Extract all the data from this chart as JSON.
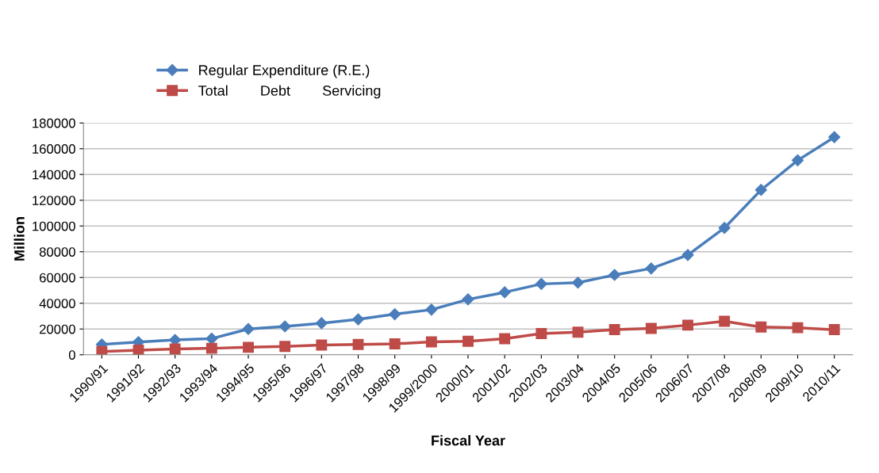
{
  "chart_data": {
    "type": "line",
    "xlabel": "Fiscal Year",
    "ylabel": "Million",
    "categories": [
      "1990/91",
      "1991/92",
      "1992/93",
      "1993/94",
      "1994/95",
      "1995/96",
      "1996/97",
      "1997/98",
      "1998/99",
      "1999/2000",
      "2000/01",
      "2001/02",
      "2002/03",
      "2003/04",
      "2004/05",
      "2005/06",
      "2006/07",
      "2007/08",
      "2008/09",
      "2009/10",
      "2010/11"
    ],
    "series": [
      {
        "name": "Regular Expenditure (R.E.)",
        "color": "#4a7ebb",
        "marker": "diamond",
        "values": [
          8000,
          9800,
          11500,
          12500,
          20000,
          22000,
          24500,
          27500,
          31500,
          35000,
          43000,
          48500,
          55000,
          56000,
          62000,
          67000,
          77500,
          98500,
          128000,
          151000,
          169000
        ]
      },
      {
        "name": "Total        Debt        Servicing",
        "color": "#be4b48",
        "marker": "square",
        "values": [
          2500,
          3500,
          4500,
          5000,
          5800,
          6500,
          7500,
          8000,
          8500,
          10000,
          10500,
          12500,
          16500,
          17500,
          19500,
          20500,
          23000,
          26000,
          21500,
          21000,
          19500
        ]
      }
    ],
    "ylim": [
      0,
      180000
    ],
    "yticks": [
      0,
      20000,
      40000,
      60000,
      80000,
      100000,
      120000,
      140000,
      160000,
      180000
    ],
    "grid": "y",
    "legend": "top left",
    "line_style": "solid"
  }
}
